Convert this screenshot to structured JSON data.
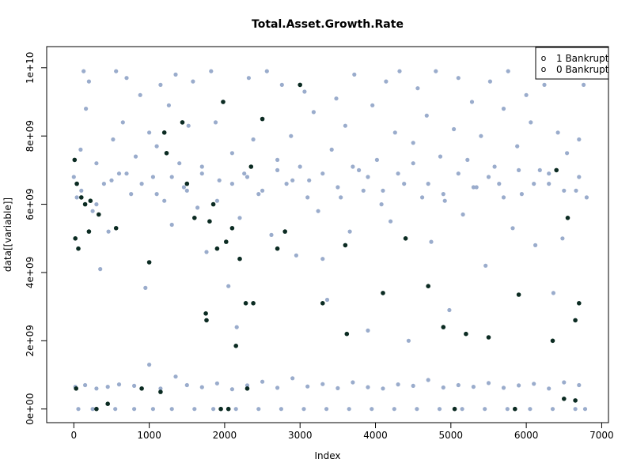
{
  "chart_data": {
    "type": "scatter",
    "title": "Total.Asset.Growth.Rate",
    "xlabel": "Index",
    "ylabel": "data[[variable]]",
    "xlim": [
      0,
      7000
    ],
    "ylim": [
      0,
      10000000000
    ],
    "x_ticks": [
      {
        "value": 0,
        "label": "0"
      },
      {
        "value": 1000,
        "label": "1000"
      },
      {
        "value": 2000,
        "label": "2000"
      },
      {
        "value": 3000,
        "label": "3000"
      },
      {
        "value": 4000,
        "label": "4000"
      },
      {
        "value": 5000,
        "label": "5000"
      },
      {
        "value": 6000,
        "label": "6000"
      },
      {
        "value": 7000,
        "label": "7000"
      }
    ],
    "y_ticks": [
      {
        "value": 0,
        "label": "0e+00"
      },
      {
        "value": 2000000000,
        "label": "2e+09"
      },
      {
        "value": 4000000000,
        "label": "4e+09"
      },
      {
        "value": 6000000000,
        "label": "6e+09"
      },
      {
        "value": 8000000000,
        "label": "8e+09"
      },
      {
        "value": 10000000000,
        "label": "1e+10"
      }
    ],
    "legend": {
      "position": "top-right",
      "entries": [
        {
          "symbol": "o",
          "label": "1 Bankrupt"
        },
        {
          "symbol": "o",
          "label": "0 Bankrupt"
        }
      ]
    },
    "series": [
      {
        "class": "0",
        "color": "#9aaccc",
        "points": [
          [
            0,
            6800000000.0
          ],
          [
            40,
            6200000000.0
          ],
          [
            90,
            7600000000.0
          ],
          [
            130,
            9900000000.0
          ],
          [
            160,
            8800000000.0
          ],
          [
            200,
            9600000000.0
          ],
          [
            250,
            5800000000.0
          ],
          [
            300,
            7200000000.0
          ],
          [
            350,
            4100000000.0
          ],
          [
            400,
            6600000000.0
          ],
          [
            460,
            5200000000.0
          ],
          [
            520,
            7900000000.0
          ],
          [
            560,
            9900000000.0
          ],
          [
            600,
            6900000000.0
          ],
          [
            650,
            8400000000.0
          ],
          [
            700,
            9700000000.0
          ],
          [
            760,
            6300000000.0
          ],
          [
            820,
            7400000000.0
          ],
          [
            880,
            9200000000.0
          ],
          [
            950,
            3550000000.0
          ],
          [
            1000,
            8100000000.0
          ],
          [
            1050,
            6800000000.0
          ],
          [
            1100,
            7700000000.0
          ],
          [
            1150,
            9500000000.0
          ],
          [
            1200,
            6100000000.0
          ],
          [
            1260,
            8900000000.0
          ],
          [
            1300,
            5400000000.0
          ],
          [
            1350,
            9800000000.0
          ],
          [
            1400,
            7200000000.0
          ],
          [
            1460,
            6500000000.0
          ],
          [
            1520,
            8300000000.0
          ],
          [
            1580,
            9600000000.0
          ],
          [
            1640,
            5900000000.0
          ],
          [
            1700,
            7100000000.0
          ],
          [
            1760,
            4600000000.0
          ],
          [
            1820,
            9900000000.0
          ],
          [
            1880,
            8400000000.0
          ],
          [
            1930,
            6700000000.0
          ],
          [
            1980,
            9000000000.0
          ],
          [
            2050,
            3600000000.0
          ],
          [
            2100,
            7500000000.0
          ],
          [
            2160,
            2400000000.0
          ],
          [
            2200,
            5600000000.0
          ],
          [
            2260,
            6900000000.0
          ],
          [
            2320,
            9700000000.0
          ],
          [
            2380,
            7900000000.0
          ],
          [
            2450,
            6300000000.0
          ],
          [
            2500,
            8500000000.0
          ],
          [
            2560,
            9900000000.0
          ],
          [
            2620,
            5100000000.0
          ],
          [
            2700,
            7300000000.0
          ],
          [
            2760,
            9500000000.0
          ],
          [
            2820,
            6600000000.0
          ],
          [
            2880,
            8000000000.0
          ],
          [
            2950,
            4500000000.0
          ],
          [
            3000,
            7100000000.0
          ],
          [
            3060,
            9300000000.0
          ],
          [
            3120,
            6700000000.0
          ],
          [
            3180,
            8700000000.0
          ],
          [
            3240,
            5800000000.0
          ],
          [
            3300,
            4400000000.0
          ],
          [
            3360,
            3200000000.0
          ],
          [
            3420,
            7600000000.0
          ],
          [
            3480,
            9100000000.0
          ],
          [
            3540,
            6200000000.0
          ],
          [
            3600,
            8300000000.0
          ],
          [
            3660,
            5200000000.0
          ],
          [
            3720,
            9800000000.0
          ],
          [
            3780,
            7000000000.0
          ],
          [
            3840,
            6400000000.0
          ],
          [
            3900,
            2300000000.0
          ],
          [
            3960,
            8900000000.0
          ],
          [
            4020,
            7300000000.0
          ],
          [
            4080,
            6000000000.0
          ],
          [
            4140,
            9600000000.0
          ],
          [
            4200,
            5500000000.0
          ],
          [
            4260,
            8100000000.0
          ],
          [
            4320,
            9900000000.0
          ],
          [
            4380,
            6600000000.0
          ],
          [
            4440,
            2000000000.0
          ],
          [
            4500,
            7800000000.0
          ],
          [
            4560,
            9400000000.0
          ],
          [
            4620,
            6200000000.0
          ],
          [
            4680,
            8600000000.0
          ],
          [
            4740,
            4900000000.0
          ],
          [
            4800,
            9900000000.0
          ],
          [
            4860,
            7400000000.0
          ],
          [
            4920,
            6100000000.0
          ],
          [
            4980,
            2900000000.0
          ],
          [
            5040,
            8200000000.0
          ],
          [
            5100,
            9700000000.0
          ],
          [
            5160,
            5700000000.0
          ],
          [
            5220,
            7300000000.0
          ],
          [
            5280,
            9000000000.0
          ],
          [
            5340,
            6500000000.0
          ],
          [
            5400,
            8000000000.0
          ],
          [
            5460,
            4200000000.0
          ],
          [
            5520,
            9600000000.0
          ],
          [
            5580,
            7100000000.0
          ],
          [
            5640,
            6600000000.0
          ],
          [
            5700,
            8800000000.0
          ],
          [
            5760,
            9900000000.0
          ],
          [
            5820,
            5300000000.0
          ],
          [
            5880,
            7700000000.0
          ],
          [
            5940,
            6300000000.0
          ],
          [
            6000,
            9200000000.0
          ],
          [
            6060,
            8400000000.0
          ],
          [
            6120,
            4800000000.0
          ],
          [
            6180,
            7000000000.0
          ],
          [
            6240,
            9500000000.0
          ],
          [
            6300,
            6600000000.0
          ],
          [
            6360,
            3400000000.0
          ],
          [
            6420,
            8100000000.0
          ],
          [
            6480,
            5000000000.0
          ],
          [
            6540,
            7500000000.0
          ],
          [
            6600,
            9800000000.0
          ],
          [
            6660,
            6400000000.0
          ],
          [
            6700,
            7900000000.0
          ],
          [
            6760,
            9500000000.0
          ],
          [
            6800,
            6200000000.0
          ],
          [
            100,
            6400000000.0
          ],
          [
            300,
            6000000000.0
          ],
          [
            500,
            6700000000.0
          ],
          [
            700,
            6900000000.0
          ],
          [
            900,
            6600000000.0
          ],
          [
            1100,
            6300000000.0
          ],
          [
            1300,
            6800000000.0
          ],
          [
            1500,
            6400000000.0
          ],
          [
            1700,
            6900000000.0
          ],
          [
            1900,
            6100000000.0
          ],
          [
            2100,
            6600000000.0
          ],
          [
            2300,
            6800000000.0
          ],
          [
            2500,
            6400000000.0
          ],
          [
            2700,
            7000000000.0
          ],
          [
            2900,
            6700000000.0
          ],
          [
            3100,
            6200000000.0
          ],
          [
            3300,
            6900000000.0
          ],
          [
            3500,
            6500000000.0
          ],
          [
            3700,
            7100000000.0
          ],
          [
            3900,
            6800000000.0
          ],
          [
            4100,
            6400000000.0
          ],
          [
            4300,
            6900000000.0
          ],
          [
            4500,
            7200000000.0
          ],
          [
            4700,
            6600000000.0
          ],
          [
            4900,
            6300000000.0
          ],
          [
            5100,
            6900000000.0
          ],
          [
            5300,
            6500000000.0
          ],
          [
            5500,
            6800000000.0
          ],
          [
            5700,
            6200000000.0
          ],
          [
            5900,
            7000000000.0
          ],
          [
            6100,
            6600000000.0
          ],
          [
            6300,
            6900000000.0
          ],
          [
            6500,
            6400000000.0
          ],
          [
            6700,
            6800000000.0
          ],
          [
            20,
            650000000.0
          ],
          [
            150,
            700000000.0
          ],
          [
            300,
            600000000.0
          ],
          [
            450,
            650000000.0
          ],
          [
            600,
            720000000.0
          ],
          [
            800,
            680000000.0
          ],
          [
            1000,
            1300000000.0
          ],
          [
            1150,
            600000000.0
          ],
          [
            1350,
            950000000.0
          ],
          [
            1500,
            700000000.0
          ],
          [
            1700,
            640000000.0
          ],
          [
            1900,
            750000000.0
          ],
          [
            2100,
            580000000.0
          ],
          [
            2300,
            690000000.0
          ],
          [
            2500,
            800000000.0
          ],
          [
            2700,
            620000000.0
          ],
          [
            2900,
            900000000.0
          ],
          [
            3100,
            660000000.0
          ],
          [
            3300,
            730000000.0
          ],
          [
            3500,
            610000000.0
          ],
          [
            3700,
            780000000.0
          ],
          [
            3900,
            640000000.0
          ],
          [
            4100,
            600000000.0
          ],
          [
            4300,
            720000000.0
          ],
          [
            4500,
            680000000.0
          ],
          [
            4700,
            850000000.0
          ],
          [
            4900,
            630000000.0
          ],
          [
            5100,
            700000000.0
          ],
          [
            5300,
            650000000.0
          ],
          [
            5500,
            760000000.0
          ],
          [
            5700,
            620000000.0
          ],
          [
            5900,
            690000000.0
          ],
          [
            6100,
            740000000.0
          ],
          [
            6300,
            600000000.0
          ],
          [
            6500,
            780000000.0
          ],
          [
            6700,
            700000000.0
          ],
          [
            60,
            0
          ],
          [
            250,
            0
          ],
          [
            550,
            0
          ],
          [
            800,
            0
          ],
          [
            1050,
            0
          ],
          [
            1300,
            0
          ],
          [
            1600,
            0
          ],
          [
            1850,
            0
          ],
          [
            2150,
            0
          ],
          [
            2450,
            0
          ],
          [
            2750,
            0
          ],
          [
            3050,
            0
          ],
          [
            3350,
            0
          ],
          [
            3650,
            0
          ],
          [
            3950,
            0
          ],
          [
            4250,
            0
          ],
          [
            4550,
            0
          ],
          [
            4850,
            0
          ],
          [
            5150,
            0
          ],
          [
            5450,
            0
          ],
          [
            5750,
            0
          ],
          [
            6050,
            0
          ],
          [
            6350,
            0
          ],
          [
            6650,
            0
          ],
          [
            6780,
            0
          ]
        ]
      },
      {
        "class": "1",
        "color": "#0b2b22",
        "points": [
          [
            10,
            7300000000.0
          ],
          [
            20,
            5000000000.0
          ],
          [
            40,
            6600000000.0
          ],
          [
            60,
            4700000000.0
          ],
          [
            100,
            6200000000.0
          ],
          [
            150,
            6000000000.0
          ],
          [
            200,
            5200000000.0
          ],
          [
            220,
            6100000000.0
          ],
          [
            330,
            5700000000.0
          ],
          [
            560,
            5300000000.0
          ],
          [
            1000,
            4300000000.0
          ],
          [
            1200,
            8100000000.0
          ],
          [
            1230,
            7500000000.0
          ],
          [
            1440,
            8400000000.0
          ],
          [
            1500,
            6600000000.0
          ],
          [
            1600,
            5600000000.0
          ],
          [
            1750,
            2800000000.0
          ],
          [
            1760,
            2600000000.0
          ],
          [
            1800,
            5500000000.0
          ],
          [
            1850,
            6000000000.0
          ],
          [
            1900,
            4700000000.0
          ],
          [
            1980,
            9000000000.0
          ],
          [
            2020,
            4900000000.0
          ],
          [
            2100,
            5300000000.0
          ],
          [
            2150,
            1850000000.0
          ],
          [
            2200,
            4400000000.0
          ],
          [
            2280,
            3100000000.0
          ],
          [
            2350,
            7100000000.0
          ],
          [
            2380,
            3100000000.0
          ],
          [
            2500,
            8500000000.0
          ],
          [
            2700,
            4700000000.0
          ],
          [
            2800,
            5200000000.0
          ],
          [
            3000,
            9500000000.0
          ],
          [
            3300,
            3100000000.0
          ],
          [
            3600,
            4800000000.0
          ],
          [
            3620,
            2200000000.0
          ],
          [
            4100,
            3400000000.0
          ],
          [
            4400,
            5000000000.0
          ],
          [
            4700,
            3600000000.0
          ],
          [
            4900,
            2400000000.0
          ],
          [
            5200,
            2200000000.0
          ],
          [
            5500,
            2100000000.0
          ],
          [
            5900,
            3350000000.0
          ],
          [
            6350,
            2000000000.0
          ],
          [
            6400,
            7000000000.0
          ],
          [
            6550,
            5600000000.0
          ],
          [
            6650,
            2600000000.0
          ],
          [
            6700,
            3100000000.0
          ],
          [
            30,
            600000000.0
          ],
          [
            300,
            0
          ],
          [
            450,
            150000000.0
          ],
          [
            900,
            600000000.0
          ],
          [
            1150,
            500000000.0
          ],
          [
            1950,
            0
          ],
          [
            2050,
            0
          ],
          [
            2300,
            600000000.0
          ],
          [
            5050,
            0
          ],
          [
            5850,
            0
          ],
          [
            6500,
            300000000.0
          ],
          [
            6650,
            250000000.0
          ]
        ]
      }
    ]
  }
}
